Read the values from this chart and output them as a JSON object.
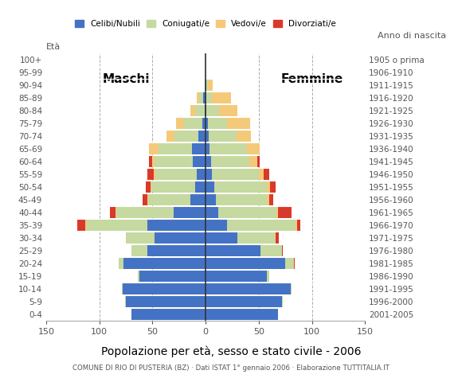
{
  "age_groups": [
    "0-4",
    "5-9",
    "10-14",
    "15-19",
    "20-24",
    "25-29",
    "30-34",
    "35-39",
    "40-44",
    "45-49",
    "50-54",
    "55-59",
    "60-64",
    "65-69",
    "70-74",
    "75-79",
    "80-84",
    "85-89",
    "90-94",
    "95-99",
    "100+"
  ],
  "birth_years": [
    "2001-2005",
    "1996-2000",
    "1991-1995",
    "1986-1990",
    "1981-1985",
    "1976-1980",
    "1971-1975",
    "1966-1970",
    "1961-1965",
    "1956-1960",
    "1951-1955",
    "1946-1950",
    "1941-1945",
    "1936-1940",
    "1931-1935",
    "1926-1930",
    "1921-1925",
    "1916-1920",
    "1911-1915",
    "1906-1910",
    "1905 o prima"
  ],
  "males": {
    "celibe": [
      70,
      75,
      78,
      62,
      77,
      55,
      48,
      55,
      30,
      14,
      10,
      8,
      12,
      13,
      7,
      3,
      1,
      2,
      0,
      0,
      0
    ],
    "coniugato": [
      0,
      1,
      1,
      2,
      5,
      15,
      27,
      57,
      54,
      40,
      41,
      39,
      36,
      31,
      22,
      17,
      9,
      4,
      1,
      0,
      0
    ],
    "vedovo": [
      0,
      0,
      0,
      0,
      0,
      0,
      0,
      1,
      1,
      1,
      1,
      2,
      2,
      9,
      8,
      8,
      4,
      2,
      0,
      0,
      0
    ],
    "divorziato": [
      0,
      0,
      0,
      0,
      0,
      0,
      0,
      8,
      5,
      4,
      4,
      6,
      3,
      0,
      0,
      0,
      0,
      0,
      0,
      0,
      0
    ]
  },
  "females": {
    "nubile": [
      68,
      72,
      80,
      58,
      75,
      52,
      30,
      20,
      12,
      10,
      8,
      6,
      5,
      4,
      3,
      2,
      1,
      1,
      1,
      0,
      0
    ],
    "coniugata": [
      0,
      1,
      1,
      2,
      8,
      20,
      35,
      65,
      55,
      48,
      50,
      44,
      36,
      35,
      26,
      18,
      12,
      5,
      1,
      0,
      0
    ],
    "vedova": [
      0,
      0,
      0,
      0,
      0,
      0,
      1,
      1,
      1,
      2,
      3,
      5,
      8,
      12,
      14,
      22,
      17,
      18,
      5,
      1,
      1
    ],
    "divorziata": [
      0,
      0,
      0,
      0,
      1,
      1,
      3,
      3,
      13,
      4,
      5,
      5,
      2,
      0,
      0,
      0,
      0,
      0,
      0,
      0,
      0
    ]
  },
  "colors": {
    "celibe_nubile": "#4472c4",
    "coniugato_coniugata": "#c5d9a0",
    "vedovo_vedova": "#f5c97a",
    "divorziato_divorziata": "#d9392a"
  },
  "title": "Popolazione per età, sesso e stato civile - 2006",
  "subtitle": "COMUNE DI RIO DI PUSTERIA (BZ) · Dati ISTAT 1° gennaio 2006 · Elaborazione TUTTITALIA.IT",
  "xlabel_left": "Maschi",
  "xlabel_right": "Femmine",
  "ylabel_left": "Età",
  "ylabel_right": "Anno di nascita",
  "xlim": 150,
  "background_color": "#ffffff",
  "grid_color": "#aaaaaa"
}
